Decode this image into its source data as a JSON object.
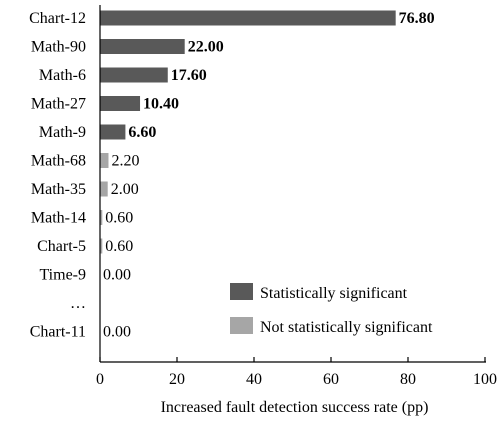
{
  "chart_data": {
    "type": "bar",
    "orientation": "horizontal",
    "categories": [
      "Chart-12",
      "Math-90",
      "Math-6",
      "Math-27",
      "Math-9",
      "Math-68",
      "Math-35",
      "Math-14",
      "Chart-5",
      "Time-9",
      "…",
      "Chart-11"
    ],
    "values": [
      76.8,
      22.0,
      17.6,
      10.4,
      6.6,
      2.2,
      2.0,
      0.6,
      0.6,
      0.0,
      null,
      0.0
    ],
    "value_labels": [
      "76.80",
      "22.00",
      "17.60",
      "10.40",
      "6.60",
      "2.20",
      "2.00",
      "0.60",
      "0.60",
      "0.00",
      "",
      "0.00"
    ],
    "significant": [
      true,
      true,
      true,
      true,
      true,
      false,
      false,
      false,
      false,
      false,
      false,
      false
    ],
    "xlabel": "Increased fault detection success rate (pp)",
    "ylabel": "",
    "xlim": [
      0,
      100
    ],
    "xticks": [
      0,
      20,
      40,
      60,
      80,
      100
    ],
    "grid": false,
    "legend": {
      "placement": "bottom-right",
      "entries": [
        {
          "label": "Statistically significant",
          "color": "#595959"
        },
        {
          "label": "Not statistically significant",
          "color": "#a6a6a6"
        }
      ]
    },
    "colors": {
      "significant": "#595959",
      "not_significant": "#a6a6a6"
    }
  }
}
